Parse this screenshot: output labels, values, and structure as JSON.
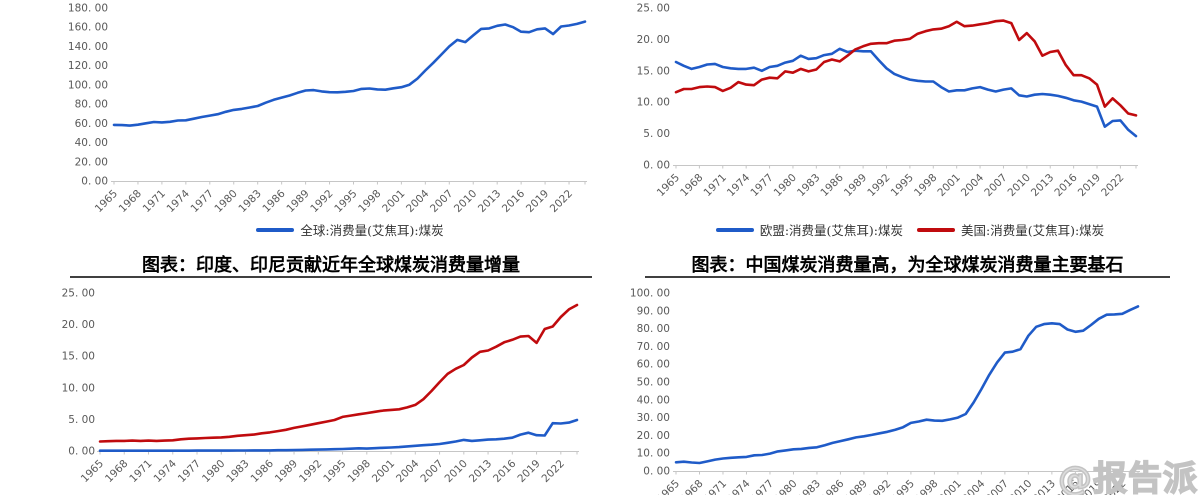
{
  "colors": {
    "blue": "#1F5BC8",
    "red": "#C00B0E",
    "axis": "#C6C6C6",
    "tick_label": "#595959",
    "title": "#000000",
    "legend_text": "#333333",
    "watermark": "#C9C9C9"
  },
  "watermark": {
    "text": "@报告派"
  },
  "x_axis": {
    "start_year": 1965,
    "end_year": 2024,
    "tick_labels": [
      "1965",
      "1968",
      "1971",
      "1974",
      "1977",
      "1980",
      "1983",
      "1986",
      "1989",
      "1992",
      "1995",
      "1998",
      "2001",
      "2004",
      "2007",
      "2010",
      "2013",
      "2016",
      "2019",
      "2022"
    ]
  },
  "chart_data": [
    {
      "key": "global-coal",
      "type": "line",
      "title": "",
      "ylim": [
        0,
        180
      ],
      "y_tick_labels": [
        "180. 00",
        "160. 00",
        "140. 00",
        "120. 00",
        "100. 00",
        "80. 00",
        "60. 00",
        "40. 00",
        "20. 00",
        "0. 00"
      ],
      "legend": [
        "全球:消费量(艾焦耳):煤炭"
      ],
      "series": [
        {
          "name": "全球:消费量(艾焦耳):煤炭",
          "color": "#1F5BC8",
          "values": [
            58.4,
            58.2,
            57.6,
            58.6,
            60.0,
            61.4,
            61.0,
            61.6,
            63.0,
            63.2,
            64.8,
            66.6,
            68.0,
            69.5,
            72.0,
            74.0,
            75.0,
            76.5,
            78.0,
            81.5,
            84.5,
            86.8,
            89.0,
            91.8,
            94.2,
            94.6,
            93.2,
            92.4,
            92.3,
            92.8,
            93.6,
            95.8,
            96.2,
            95.3,
            95.0,
            96.4,
            97.6,
            100.2,
            106.5,
            115.0,
            123.0,
            131.5,
            140.0,
            146.8,
            144.5,
            151.5,
            158.3,
            158.8,
            161.5,
            162.8,
            160.0,
            155.3,
            154.8,
            157.8,
            158.8,
            152.8,
            160.8,
            161.8,
            163.5,
            165.8
          ]
        }
      ]
    },
    {
      "key": "eu-us-coal",
      "type": "line",
      "title": "",
      "ylim": [
        0,
        25
      ],
      "y_tick_labels": [
        "25. 00",
        "20. 00",
        "15. 00",
        "10. 00",
        "5. 00",
        "0. 00"
      ],
      "legend": [
        "欧盟:消费量(艾焦耳):煤炭",
        "美国:消费量(艾焦耳):煤炭"
      ],
      "series": [
        {
          "name": "欧盟:消费量(艾焦耳):煤炭",
          "color": "#1F5BC8",
          "values": [
            16.4,
            15.8,
            15.3,
            15.6,
            16.0,
            16.1,
            15.6,
            15.4,
            15.3,
            15.3,
            15.5,
            15.0,
            15.6,
            15.8,
            16.3,
            16.6,
            17.4,
            16.9,
            17.0,
            17.5,
            17.7,
            18.5,
            18.0,
            18.2,
            18.1,
            18.1,
            16.7,
            15.4,
            14.5,
            14.0,
            13.6,
            13.4,
            13.3,
            13.3,
            12.4,
            11.7,
            11.9,
            11.9,
            12.2,
            12.4,
            12.0,
            11.7,
            12.0,
            12.2,
            11.1,
            10.9,
            11.2,
            11.3,
            11.2,
            11.0,
            10.7,
            10.3,
            10.1,
            9.7,
            9.3,
            6.1,
            7.0,
            7.1,
            5.6,
            4.6
          ]
        },
        {
          "name": "美国:消费量(艾焦耳):煤炭",
          "color": "#C00B0E",
          "values": [
            11.6,
            12.1,
            12.1,
            12.4,
            12.5,
            12.4,
            11.8,
            12.3,
            13.2,
            12.8,
            12.7,
            13.6,
            13.9,
            13.8,
            14.9,
            14.7,
            15.3,
            14.9,
            15.2,
            16.4,
            16.8,
            16.5,
            17.4,
            18.4,
            18.9,
            19.3,
            19.4,
            19.4,
            19.8,
            19.9,
            20.1,
            20.9,
            21.3,
            21.6,
            21.7,
            22.1,
            22.8,
            22.1,
            22.2,
            22.4,
            22.6,
            22.9,
            23.0,
            22.6,
            19.9,
            21.0,
            19.7,
            17.4,
            18.0,
            18.2,
            15.9,
            14.3,
            14.3,
            13.8,
            12.8,
            9.3,
            10.6,
            9.5,
            8.2,
            7.9
          ]
        }
      ]
    },
    {
      "key": "india-indonesia-coal",
      "type": "line",
      "title": "图表：印度、印尼贡献近年全球煤炭消费量增量",
      "ylim": [
        0,
        25
      ],
      "y_tick_labels": [
        "25. 00",
        "20. 00",
        "15. 00",
        "10. 00",
        "5. 00",
        "0. 00"
      ],
      "legend": [],
      "series": [
        {
          "name": "",
          "color": "#C00B0E",
          "values": [
            1.5,
            1.55,
            1.6,
            1.6,
            1.65,
            1.6,
            1.65,
            1.6,
            1.65,
            1.7,
            1.85,
            1.95,
            2.0,
            2.05,
            2.1,
            2.15,
            2.25,
            2.4,
            2.5,
            2.6,
            2.8,
            2.95,
            3.15,
            3.35,
            3.65,
            3.9,
            4.15,
            4.4,
            4.65,
            4.9,
            5.4,
            5.6,
            5.8,
            6.0,
            6.2,
            6.4,
            6.5,
            6.6,
            6.9,
            7.3,
            8.2,
            9.5,
            10.9,
            12.2,
            13.0,
            13.6,
            14.8,
            15.7,
            15.9,
            16.5,
            17.2,
            17.6,
            18.1,
            18.2,
            17.1,
            19.3,
            19.7,
            21.2,
            22.4,
            23.1
          ]
        },
        {
          "name": "",
          "color": "#1F5BC8",
          "values": [
            0.05,
            0.05,
            0.05,
            0.05,
            0.05,
            0.05,
            0.05,
            0.05,
            0.05,
            0.05,
            0.05,
            0.05,
            0.06,
            0.06,
            0.06,
            0.07,
            0.07,
            0.08,
            0.08,
            0.09,
            0.1,
            0.1,
            0.12,
            0.12,
            0.15,
            0.18,
            0.2,
            0.22,
            0.25,
            0.28,
            0.32,
            0.36,
            0.42,
            0.38,
            0.45,
            0.5,
            0.55,
            0.62,
            0.72,
            0.82,
            0.92,
            1.0,
            1.1,
            1.3,
            1.5,
            1.75,
            1.6,
            1.7,
            1.8,
            1.85,
            1.95,
            2.1,
            2.6,
            2.9,
            2.5,
            2.45,
            4.4,
            4.35,
            4.5,
            4.9
          ]
        }
      ]
    },
    {
      "key": "china-coal",
      "type": "line",
      "title": "图表：中国煤炭消费量高，为全球煤炭消费量主要基石",
      "ylim": [
        0,
        100
      ],
      "y_tick_labels": [
        "100. 00",
        "90. 00",
        "80. 00",
        "70. 00",
        "60. 00",
        "50. 00",
        "40. 00",
        "30. 00",
        "20. 00",
        "10. 00",
        "0. 00"
      ],
      "legend": [],
      "series": [
        {
          "name": "",
          "color": "#1F5BC8",
          "values": [
            4.9,
            5.2,
            4.8,
            4.5,
            5.4,
            6.4,
            7.0,
            7.4,
            7.7,
            7.9,
            8.8,
            9.0,
            9.8,
            11.0,
            11.6,
            12.2,
            12.4,
            13.0,
            13.3,
            14.5,
            15.8,
            16.8,
            17.8,
            18.9,
            19.5,
            20.3,
            21.2,
            22.0,
            23.2,
            24.6,
            27.0,
            27.8,
            28.8,
            28.3,
            28.2,
            29.0,
            30.0,
            32.0,
            38.5,
            46.0,
            54.0,
            61.0,
            66.5,
            67.0,
            68.5,
            76.0,
            81.0,
            82.5,
            83.0,
            82.5,
            79.5,
            78.2,
            78.8,
            82.0,
            85.5,
            87.8,
            88.0,
            88.3,
            90.5,
            92.5
          ]
        }
      ]
    }
  ]
}
